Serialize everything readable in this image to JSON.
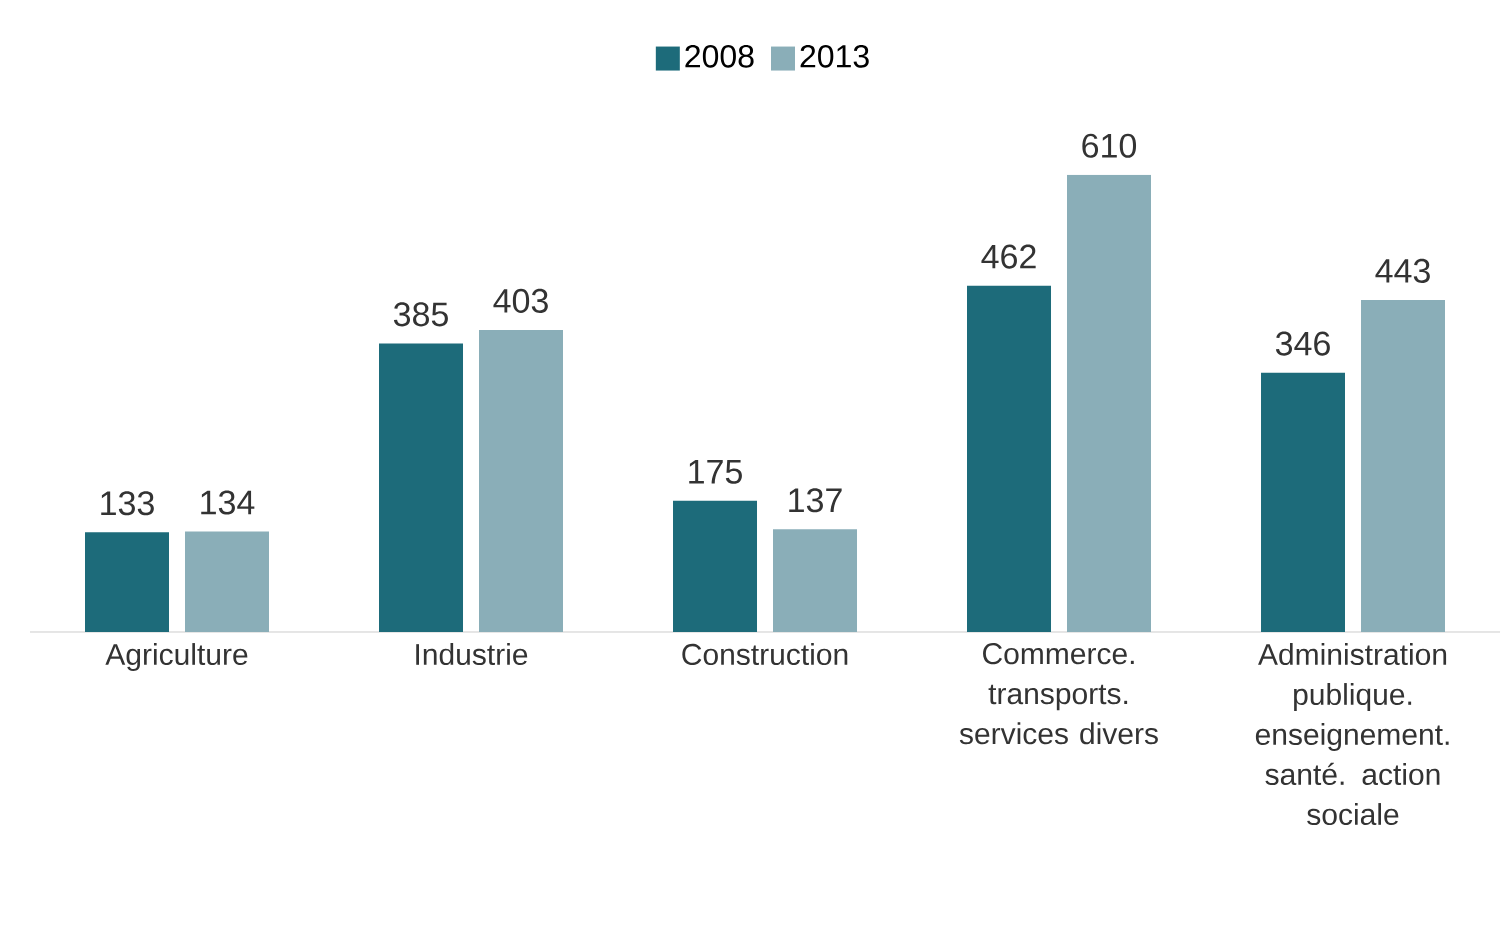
{
  "chart_data": {
    "type": "bar",
    "categories": [
      "Agriculture",
      "Industrie",
      "Construction",
      "Commerce. transports. services divers",
      "Administration publique. enseignement. santé. action sociale"
    ],
    "series": [
      {
        "name": "2008",
        "color": "#1d6b7a",
        "values": [
          133,
          385,
          175,
          462,
          346
        ]
      },
      {
        "name": "2013",
        "color": "#8aaeb8",
        "values": [
          134,
          403,
          137,
          610,
          443
        ]
      }
    ],
    "data_labels": true,
    "legend": "top"
  }
}
